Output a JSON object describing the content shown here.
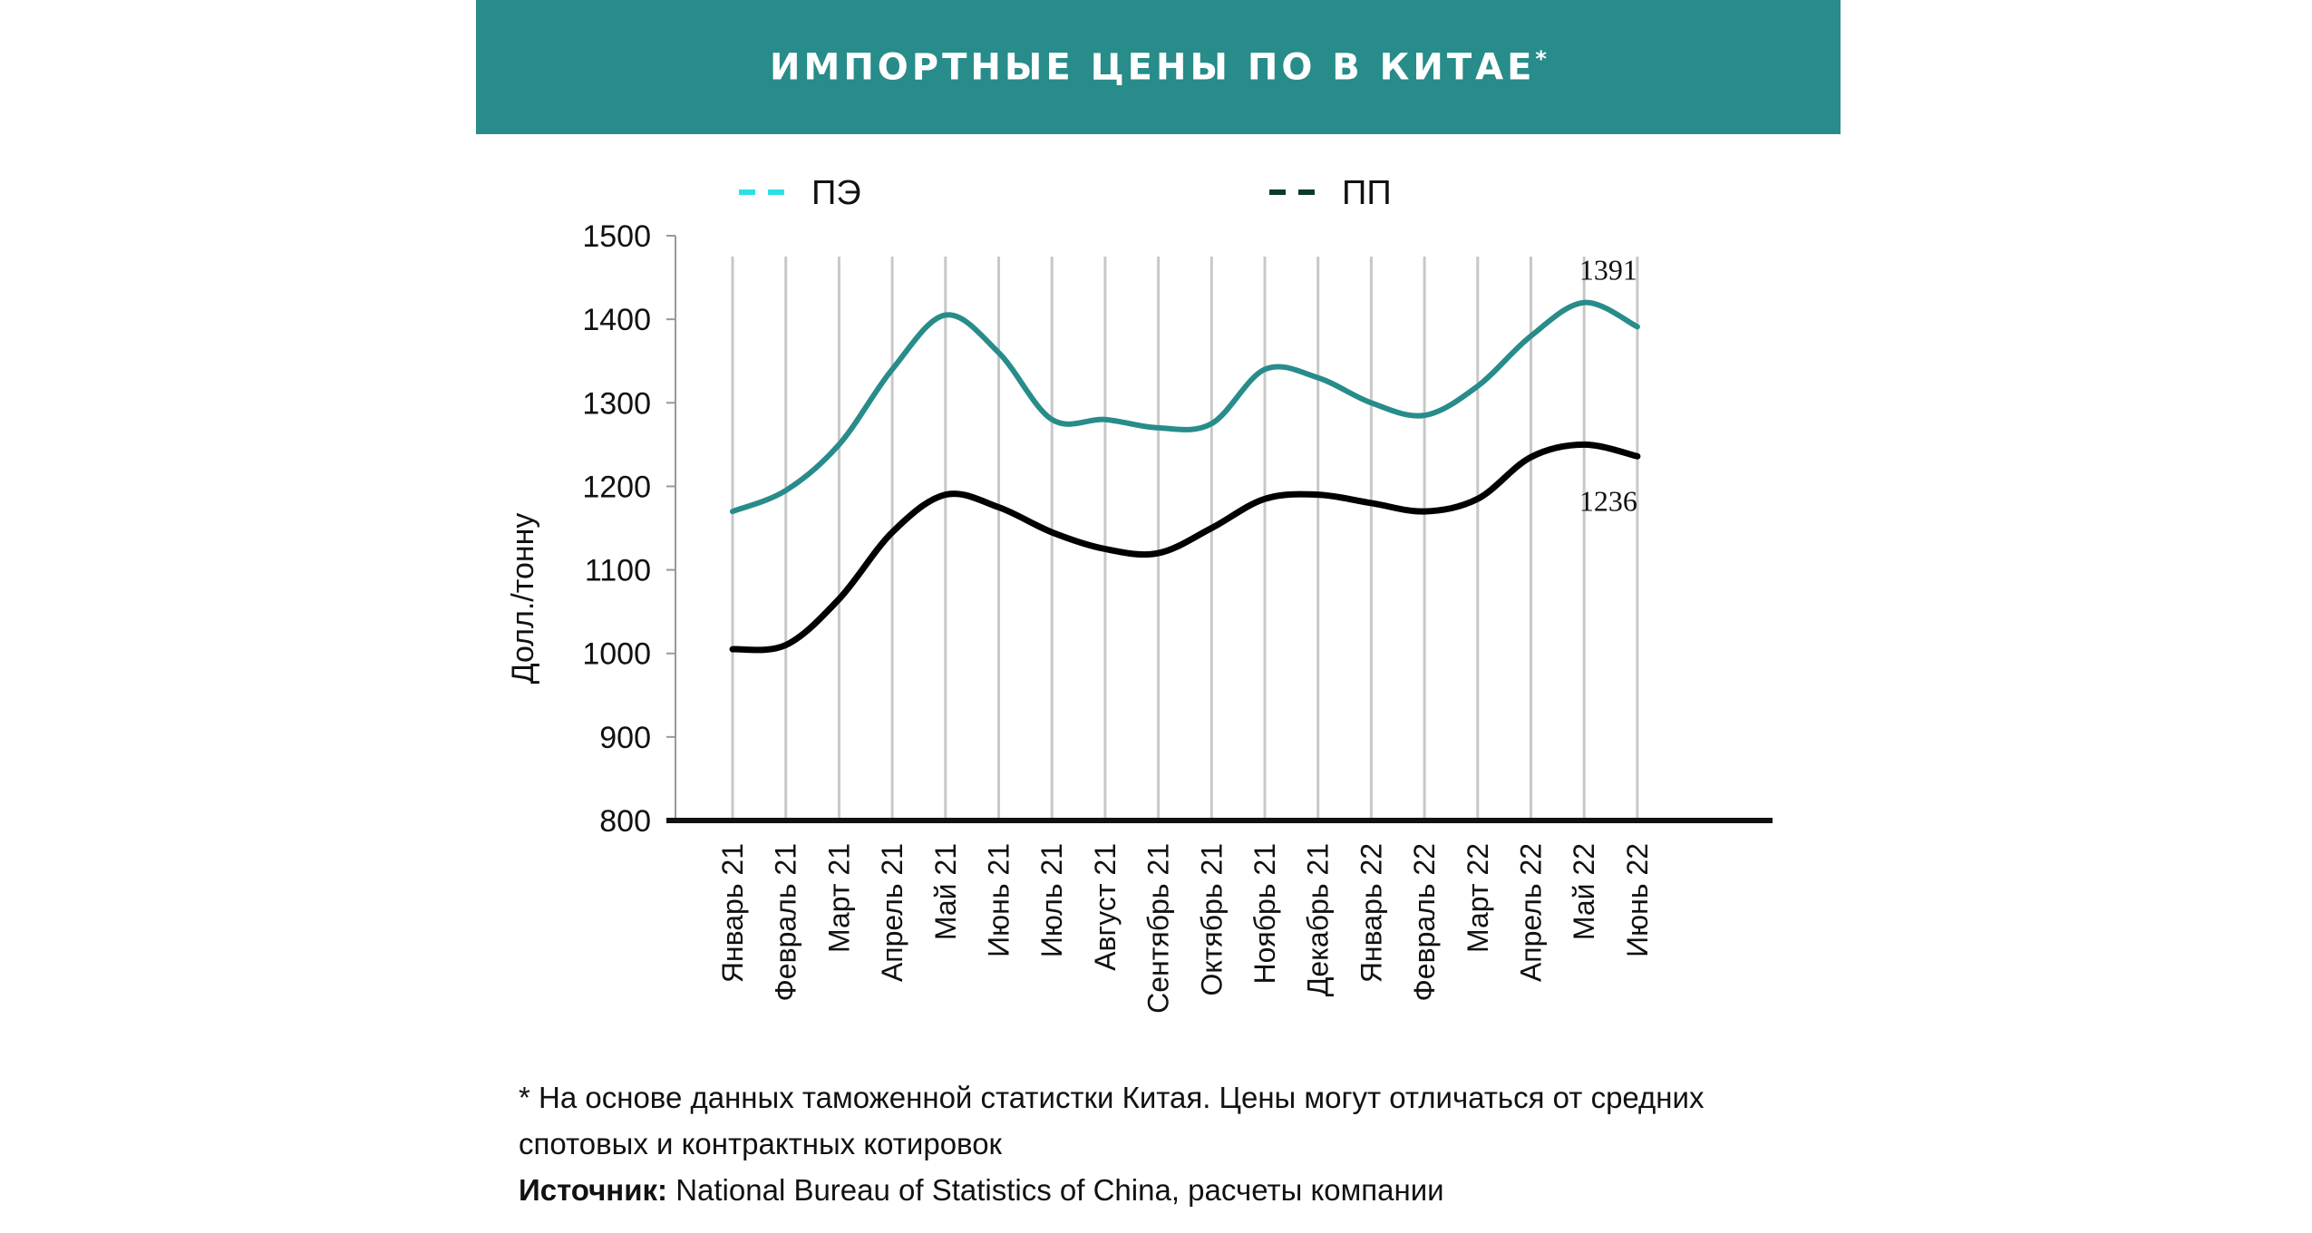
{
  "header": {
    "title": "ИМПОРТНЫЕ ЦЕНЫ ПО В КИТАЕ",
    "title_mark": "*"
  },
  "colors": {
    "header_bg": "#278c8a",
    "pe_line": "#278c8a",
    "pe_legend": "#2ae0e6",
    "pp_line": "#000000",
    "pp_legend": "#0d3b2a"
  },
  "chart_data": {
    "type": "line",
    "title": "ИМПОРТНЫЕ ЦЕНЫ ПО В КИТАЕ*",
    "xlabel": "",
    "ylabel": "Долл./тонну",
    "ylim": [
      800,
      1500
    ],
    "yticks": [
      800,
      900,
      1000,
      1100,
      1200,
      1300,
      1400,
      1500
    ],
    "grid": "vertical",
    "legend_position": "top",
    "categories": [
      "Январь 21",
      "Февраль 21",
      "Март 21",
      "Апрель 21",
      "Май 21",
      "Июнь 21",
      "Июль 21",
      "Август 21",
      "Сентябрь 21",
      "Октябрь 21",
      "Ноябрь 21",
      "Декабрь 21",
      "Январь 22",
      "Февраль 22",
      "Март 22",
      "Апрель 22",
      "Май 22",
      "Июнь 22"
    ],
    "series": [
      {
        "name": "ПЭ",
        "values": [
          1170,
          1195,
          1250,
          1340,
          1405,
          1360,
          1280,
          1280,
          1270,
          1275,
          1340,
          1330,
          1300,
          1285,
          1320,
          1380,
          1420,
          1391
        ]
      },
      {
        "name": "ПП",
        "values": [
          1005,
          1010,
          1065,
          1145,
          1190,
          1175,
          1145,
          1125,
          1120,
          1150,
          1185,
          1190,
          1180,
          1170,
          1185,
          1235,
          1250,
          1236
        ]
      }
    ],
    "annotations": [
      {
        "series": "ПЭ",
        "category": "Июнь 22",
        "text": "1391"
      },
      {
        "series": "ПП",
        "category": "Июнь 22",
        "text": "1236"
      }
    ]
  },
  "footnote": {
    "note": "* На основе данных таможенной статистки Китая. Цены могут отличаться от средних спотовых и контрактных котировок",
    "source_label": "Источник:",
    "source_text": " National Bureau of Statistics of China, расчеты компании"
  }
}
